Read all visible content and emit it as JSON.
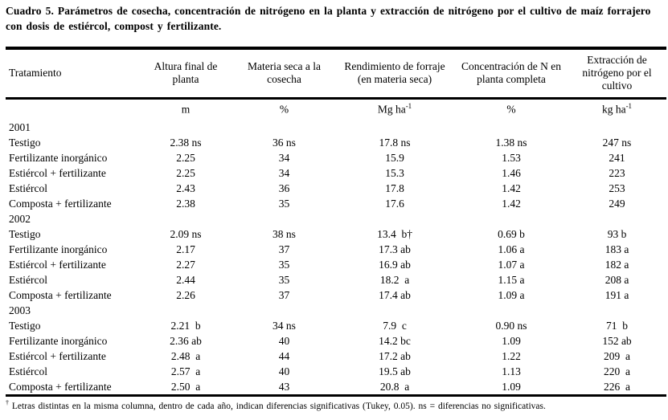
{
  "title": "Cuadro 5. Parámetros de cosecha, concentración de nitrógeno en la planta y extracción de nitrógeno por el cultivo de maíz forrajero con dosis de estiércol, compost y fertilizante.",
  "table": {
    "columns": [
      {
        "label": "Tratamiento",
        "unit": "",
        "unit_sup": ""
      },
      {
        "label": "Altura final de planta",
        "unit": "m",
        "unit_sup": ""
      },
      {
        "label": "Materia seca a la cosecha",
        "unit": "%",
        "unit_sup": ""
      },
      {
        "label": "Rendimiento de forraje (en materia seca)",
        "unit": "Mg ha",
        "unit_sup": "-1"
      },
      {
        "label": "Concentración de N en planta completa",
        "unit": "%",
        "unit_sup": ""
      },
      {
        "label": "Extracción de nitrógeno  por el cultivo",
        "unit": "kg ha",
        "unit_sup": "-1"
      }
    ],
    "groups": [
      {
        "year": "2001",
        "rows": [
          {
            "treatment": "Testigo",
            "values": [
              "2.38 ns",
              "36 ns",
              "17.8 ns",
              "1.38 ns",
              "247 ns"
            ]
          },
          {
            "treatment": "Fertilizante inorgánico",
            "values": [
              "2.25",
              "34",
              "15.9",
              "1.53",
              "241"
            ]
          },
          {
            "treatment": "Estiércol + fertilizante",
            "values": [
              "2.25",
              "34",
              "15.3",
              "1.46",
              "223"
            ]
          },
          {
            "treatment": "Estiércol",
            "values": [
              "2.43",
              "36",
              "17.8",
              "1.42",
              "253"
            ]
          },
          {
            "treatment": "Composta + fertilizante",
            "values": [
              "2.38",
              "35",
              "17.6",
              "1.42",
              "249"
            ]
          }
        ]
      },
      {
        "year": "2002",
        "rows": [
          {
            "treatment": "Testigo",
            "values": [
              "2.09 ns",
              "38 ns",
              "13.4  b†",
              "0.69 b",
              "93 b"
            ]
          },
          {
            "treatment": "Fertilizante inorgánico",
            "values": [
              "2.17",
              "37",
              "17.3 ab",
              "1.06 a",
              "183 a"
            ]
          },
          {
            "treatment": "Estiércol + fertilizante",
            "values": [
              "2.27",
              "35",
              "16.9 ab",
              "1.07 a",
              "182 a"
            ]
          },
          {
            "treatment": "Estiércol",
            "values": [
              "2.44",
              "35",
              "18.2  a",
              "1.15 a",
              "208 a"
            ]
          },
          {
            "treatment": "Composta + fertilizante",
            "values": [
              "2.26",
              "37",
              "17.4 ab",
              "1.09 a",
              "191 a"
            ]
          }
        ]
      },
      {
        "year": "2003",
        "rows": [
          {
            "treatment": "Testigo",
            "values": [
              "2.21  b",
              "34 ns",
              "7.9  c",
              "0.90 ns",
              "71  b"
            ]
          },
          {
            "treatment": "Fertilizante inorgánico",
            "values": [
              "2.36 ab",
              "40",
              "14.2 bc",
              "1.09",
              "152 ab"
            ]
          },
          {
            "treatment": "Estiércol + fertilizante",
            "values": [
              "2.48  a",
              "44",
              "17.2 ab",
              "1.22",
              "209  a"
            ]
          },
          {
            "treatment": "Estiércol",
            "values": [
              "2.57  a",
              "40",
              "19.5 ab",
              "1.13",
              "220  a"
            ]
          },
          {
            "treatment": "Composta + fertilizante",
            "values": [
              "2.50  a",
              "43",
              "20.8  a",
              "1.09",
              "226  a"
            ]
          }
        ]
      }
    ]
  },
  "footnote": {
    "marker": "†",
    "text": " Letras distintas en la misma columna, dentro de cada año, indican diferencias significativas (Tukey, 0.05). ns = diferencias no significativas."
  }
}
